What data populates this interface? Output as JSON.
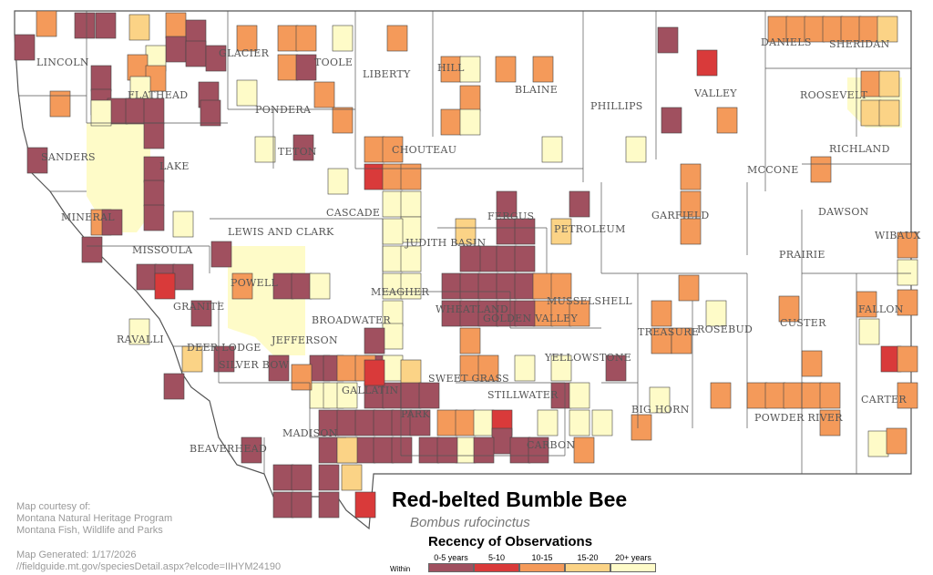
{
  "map": {
    "title": "Red-belted Bumble Bee",
    "scientific_name": "Bombus rufocinctus",
    "credits": [
      "Map courtesy of:",
      "Montana Natural Heritage Program",
      "Montana Fish, Wildlife and Parks"
    ],
    "generated": [
      "Map Generated: 1/17/2026",
      "//fieldguide.mt.gov/speciesDetail.aspx?elcode=IIHYM24190"
    ],
    "county_labels": [
      "LINCOLN",
      "FLATHEAD",
      "GLACIER",
      "TOOLE",
      "LIBERTY",
      "HILL",
      "BLAINE",
      "PHILLIPS",
      "VALLEY",
      "DANIELS",
      "SHERIDAN",
      "ROOSEVELT",
      "PONDERA",
      "TETON",
      "CHOUTEAU",
      "SANDERS",
      "LAKE",
      "RICHLAND",
      "MCCONE",
      "GARFIELD",
      "DAWSON",
      "MINERAL",
      "CASCADE",
      "FERGUS",
      "PETROLEUM",
      "LEWIS AND CLARK",
      "JUDITH BASIN",
      "WIBAUX",
      "PRAIRIE",
      "MISSOULA",
      "POWELL",
      "MEAGHER",
      "WHEATLAND",
      "MUSSELSHELL",
      "GOLDEN VALLEY",
      "CUSTER",
      "FALLON",
      "GRANITE",
      "RAVALLI",
      "BROADWATER",
      "JEFFERSON",
      "DEER LODGE",
      "SILVER BOW",
      "TREASURE",
      "ROSEBUD",
      "YELLOWSTONE",
      "SWEET GRASS",
      "STILLWATER",
      "GALLATIN",
      "PARK",
      "CARTER",
      "BIG HORN",
      "POWDER RIVER",
      "MADISON",
      "CARBON",
      "BEAVERHEAD"
    ],
    "legend": {
      "title": "Recency of Observations",
      "within_label": "Within",
      "classes": [
        {
          "label": "0-5 years",
          "color": "#a0505f"
        },
        {
          "label": "5-10",
          "color": "#d93a3a"
        },
        {
          "label": "10-15",
          "color": "#f49a5a"
        },
        {
          "label": "15-20",
          "color": "#fbd386"
        },
        {
          "label": "20+ years",
          "color": "#fefbc8"
        }
      ]
    },
    "colors": {
      "c0": "#a0505f",
      "c1": "#d93a3a",
      "c2": "#f49a5a",
      "c3": "#fbd386",
      "c4": "#fefbc8",
      "border": "#555555",
      "label": "#555555"
    }
  }
}
